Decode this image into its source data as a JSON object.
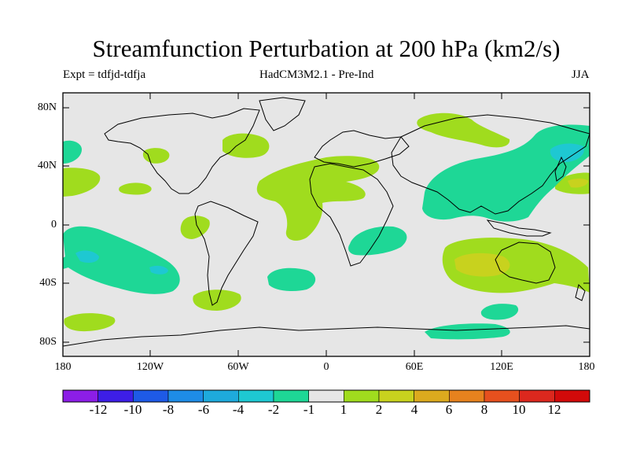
{
  "title": "Streamfunction Perturbation at 200 hPa (km2/s)",
  "subtitle": {
    "left": "Expt = tdfjd-tdfja",
    "center": "HadCM3M2.1 - Pre-Ind",
    "right": "JJA"
  },
  "map": {
    "projection": "cylindrical equidistant",
    "lat_labels": [
      "80N",
      "40N",
      "0",
      "40S",
      "80S"
    ],
    "lon_labels": [
      "180",
      "120W",
      "60W",
      "0",
      "60E",
      "120E",
      "180"
    ],
    "background_color": "#e6e6e6",
    "coast_color": "#000000"
  },
  "colorbar": {
    "levels": [
      "-12",
      "-10",
      "-8",
      "-6",
      "-4",
      "-2",
      "-1",
      "1",
      "2",
      "4",
      "6",
      "8",
      "10",
      "12"
    ],
    "colors": [
      "#8c1ee6",
      "#3d1ee6",
      "#1e5ae6",
      "#1e8ce6",
      "#1eaadc",
      "#1ec8d2",
      "#1ed796",
      "#e6e6e6",
      "#a0dc1e",
      "#c8d21e",
      "#dcaa1e",
      "#e6821e",
      "#e6501e",
      "#dc281e",
      "#d20a0a"
    ]
  },
  "chart_data": {
    "type": "heatmap",
    "title": "Streamfunction Perturbation at 200 hPa (km2/s)",
    "units": "km2/s",
    "season": "JJA",
    "contour_levels": [
      -12,
      -10,
      -8,
      -6,
      -4,
      -2,
      -1,
      1,
      2,
      4,
      6,
      8,
      10,
      12
    ],
    "lon_range": [
      -180,
      180
    ],
    "lat_range": [
      -90,
      90
    ],
    "regions": [
      {
        "name": "north-atlantic-positive",
        "sign": "positive",
        "lon": -55,
        "lat": 48,
        "value": 2
      },
      {
        "name": "eastern-pacific-positive",
        "sign": "positive",
        "lon": -150,
        "lat": 30,
        "value": 2
      },
      {
        "name": "atlantic-africa-positive",
        "sign": "positive",
        "lon": 0,
        "lat": 25,
        "value": 2
      },
      {
        "name": "tropical-south-america-positive",
        "sign": "positive",
        "lon": -45,
        "lat": -2,
        "value": 2
      },
      {
        "name": "tropical-africa-positive",
        "sign": "positive",
        "lon": 5,
        "lat": 5,
        "value": 2
      },
      {
        "name": "south-pacific-positive",
        "sign": "positive",
        "lon": -150,
        "lat": -65,
        "value": 2
      },
      {
        "name": "southern-south-america-positive",
        "sign": "positive",
        "lon": -65,
        "lat": -52,
        "value": 2
      },
      {
        "name": "australia-indian-ocean-positive",
        "sign": "positive",
        "lon": 125,
        "lat": -30,
        "value": 4
      },
      {
        "name": "northwest-pacific-positive",
        "sign": "positive",
        "lon": 170,
        "lat": 28,
        "value": 4
      },
      {
        "name": "central-pacific-negative",
        "sign": "negative",
        "lon": -150,
        "lat": -25,
        "value": -4
      },
      {
        "name": "asia-north-pacific-negative",
        "sign": "negative",
        "lon": 120,
        "lat": 35,
        "value": -4
      },
      {
        "name": "southern-africa-negative",
        "sign": "negative",
        "lon": 35,
        "lat": -10,
        "value": -2
      },
      {
        "name": "south-atlantic-negative",
        "sign": "negative",
        "lon": -30,
        "lat": -40,
        "value": -2
      },
      {
        "name": "southern-ocean-negative",
        "sign": "negative",
        "lon": 100,
        "lat": -65,
        "value": -2
      }
    ]
  }
}
